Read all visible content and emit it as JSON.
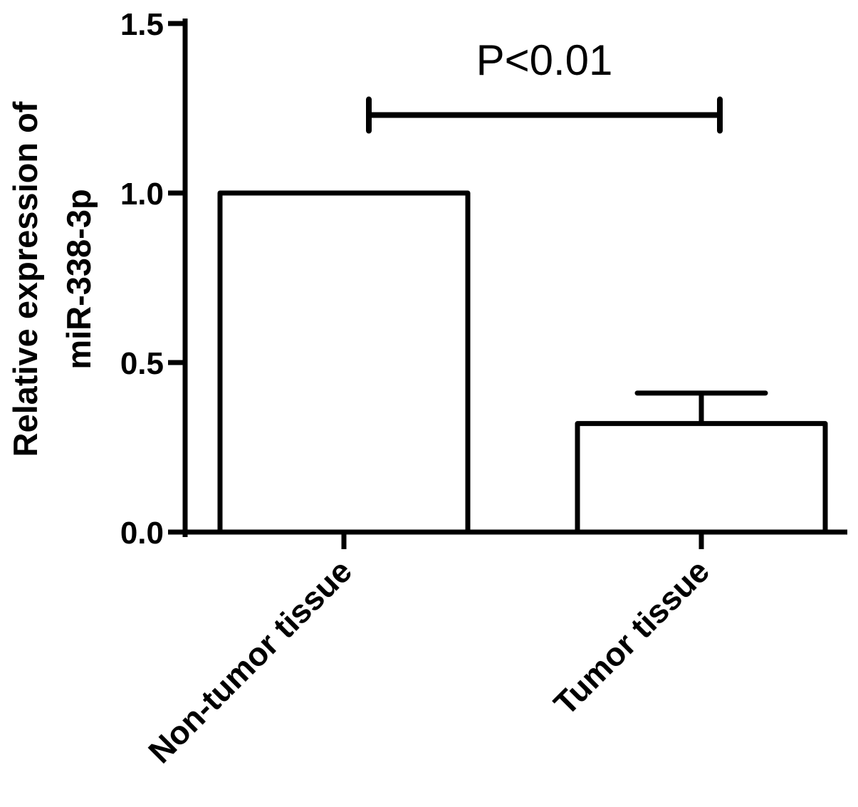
{
  "chart_data": {
    "type": "bar",
    "title": "",
    "categories": [
      "Non-tumor tissue",
      "Tumor tissue"
    ],
    "values": [
      1.0,
      0.32
    ],
    "error_upper": [
      0,
      0.41
    ],
    "ylabel_lines": [
      "Relative expression of",
      "miR-338-3p"
    ],
    "xlabel": "",
    "ylim": [
      0,
      1.5
    ],
    "yticks": [
      "0.0",
      "0.5",
      "1.0",
      "1.5"
    ],
    "grid": false,
    "legend": "none",
    "bar_fill": "#ffffff",
    "bar_stroke": "#000000",
    "significance": {
      "label": "P<0.01",
      "between": [
        0,
        1
      ],
      "y": 1.23
    }
  }
}
